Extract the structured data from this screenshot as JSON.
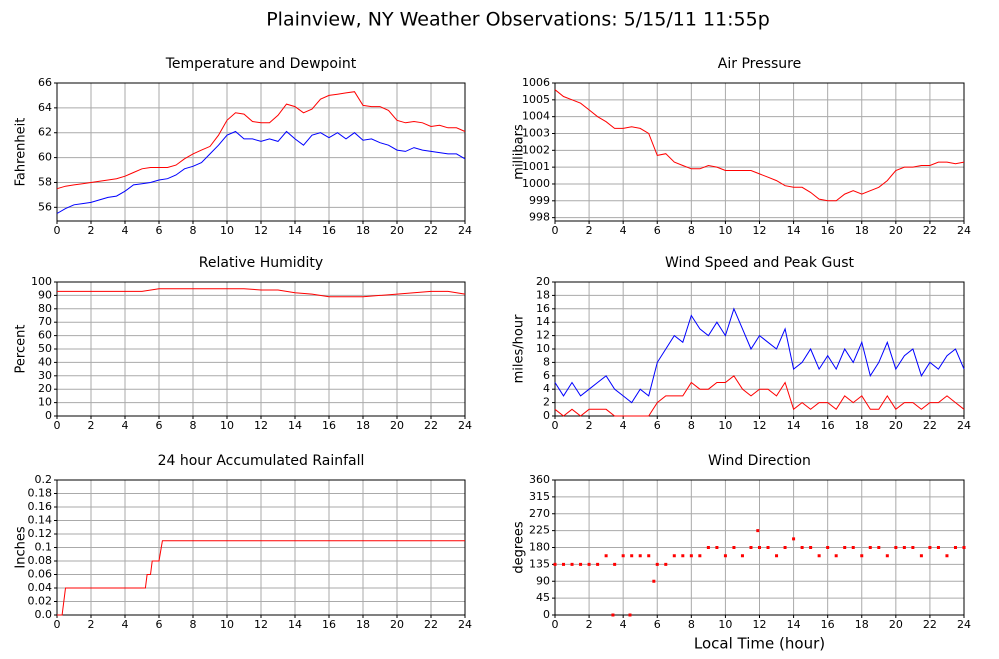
{
  "title": "Plainview, NY Weather Observations: 5/15/11 11:55p",
  "chart_data": [
    {
      "type": "line",
      "title": "Temperature and Dewpoint",
      "ylabel": "Fahrenheit",
      "x": [
        0,
        0.5,
        1,
        1.5,
        2,
        2.5,
        3,
        3.5,
        4,
        4.5,
        5,
        5.5,
        6,
        6.5,
        7,
        7.5,
        8,
        8.5,
        9,
        9.5,
        10,
        10.5,
        11,
        11.5,
        12,
        12.5,
        13,
        13.5,
        14,
        14.5,
        15,
        15.5,
        16,
        16.5,
        17,
        17.5,
        18,
        18.5,
        19,
        19.5,
        20,
        20.5,
        21,
        21.5,
        22,
        22.5,
        23,
        23.5,
        24
      ],
      "series": [
        {
          "color": "#ff0000",
          "values": [
            57.5,
            57.7,
            57.8,
            57.9,
            58.0,
            58.1,
            58.2,
            58.3,
            58.5,
            58.8,
            59.1,
            59.2,
            59.2,
            59.2,
            59.4,
            59.9,
            60.3,
            60.6,
            60.9,
            61.8,
            63.0,
            63.6,
            63.5,
            62.9,
            62.8,
            62.8,
            63.4,
            64.3,
            64.1,
            63.6,
            63.9,
            64.7,
            65.0,
            65.1,
            65.2,
            65.3,
            64.2,
            64.1,
            64.1,
            63.8,
            63.0,
            62.8,
            62.9,
            62.8,
            62.5,
            62.6,
            62.4,
            62.4,
            62.1
          ]
        },
        {
          "color": "#0000ff",
          "values": [
            55.5,
            55.9,
            56.2,
            56.3,
            56.4,
            56.6,
            56.8,
            56.9,
            57.3,
            57.8,
            57.9,
            58.0,
            58.2,
            58.3,
            58.6,
            59.1,
            59.3,
            59.6,
            60.3,
            61.0,
            61.8,
            62.1,
            61.5,
            61.5,
            61.3,
            61.5,
            61.3,
            62.1,
            61.5,
            61.0,
            61.8,
            62.0,
            61.6,
            62.0,
            61.5,
            62.0,
            61.4,
            61.5,
            61.2,
            61.0,
            60.6,
            60.5,
            60.8,
            60.6,
            60.5,
            60.4,
            60.3,
            60.3,
            59.9
          ]
        }
      ],
      "xlim": [
        0,
        24
      ],
      "xticks": [
        0,
        2,
        4,
        6,
        8,
        10,
        12,
        14,
        16,
        18,
        20,
        22,
        24
      ],
      "ylim": [
        54.9,
        66
      ],
      "yticks": [
        56,
        58,
        60,
        62,
        64,
        66
      ],
      "grid": true
    },
    {
      "type": "line",
      "title": "Air Pressure",
      "ylabel": "millibars",
      "x": [
        0,
        0.5,
        1,
        1.5,
        2,
        2.5,
        3,
        3.5,
        4,
        4.5,
        5,
        5.5,
        6,
        6.5,
        7,
        7.5,
        8,
        8.5,
        9,
        9.5,
        10,
        10.5,
        11,
        11.5,
        12,
        12.5,
        13,
        13.5,
        14,
        14.5,
        15,
        15.5,
        16,
        16.5,
        17,
        17.5,
        18,
        18.5,
        19,
        19.5,
        20,
        20.5,
        21,
        21.5,
        22,
        22.5,
        23,
        23.5,
        24
      ],
      "series": [
        {
          "color": "#ff0000",
          "values": [
            1005.6,
            1005.2,
            1005.0,
            1004.8,
            1004.4,
            1004.0,
            1003.7,
            1003.3,
            1003.3,
            1003.4,
            1003.3,
            1003.0,
            1001.7,
            1001.8,
            1001.3,
            1001.1,
            1000.9,
            1000.9,
            1001.1,
            1001.0,
            1000.8,
            1000.8,
            1000.8,
            1000.8,
            1000.6,
            1000.4,
            1000.2,
            999.9,
            999.8,
            999.8,
            999.5,
            999.1,
            999.0,
            999.0,
            999.4,
            999.6,
            999.4,
            999.6,
            999.8,
            1000.2,
            1000.8,
            1001.0,
            1001.0,
            1001.1,
            1001.1,
            1001.3,
            1001.3,
            1001.2,
            1001.3
          ]
        }
      ],
      "xlim": [
        0,
        24
      ],
      "xticks": [
        0,
        2,
        4,
        6,
        8,
        10,
        12,
        14,
        16,
        18,
        20,
        22,
        24
      ],
      "ylim": [
        997.8,
        1006
      ],
      "yticks": [
        998,
        999,
        1000,
        1001,
        1002,
        1003,
        1004,
        1005,
        1006
      ],
      "grid": true
    },
    {
      "type": "line",
      "title": "Relative Humidity",
      "ylabel": "Percent",
      "x": [
        0,
        1,
        2,
        3,
        4,
        5,
        6,
        7,
        8,
        9,
        10,
        11,
        12,
        13,
        14,
        15,
        16,
        17,
        18,
        19,
        20,
        21,
        22,
        23,
        24
      ],
      "series": [
        {
          "color": "#ff0000",
          "values": [
            93,
            93,
            93,
            93,
            93,
            93,
            95,
            95,
            95,
            95,
            95,
            95,
            94,
            94,
            92,
            91,
            89,
            89,
            89,
            90,
            91,
            92,
            93,
            93,
            91
          ]
        }
      ],
      "xlim": [
        0,
        24
      ],
      "xticks": [
        0,
        2,
        4,
        6,
        8,
        10,
        12,
        14,
        16,
        18,
        20,
        22,
        24
      ],
      "ylim": [
        0,
        100
      ],
      "yticks": [
        0,
        10,
        20,
        30,
        40,
        50,
        60,
        70,
        80,
        90,
        100
      ],
      "grid": true
    },
    {
      "type": "line",
      "title": "Wind Speed and Peak Gust",
      "ylabel": "miles/hour",
      "x": [
        0,
        0.5,
        1,
        1.5,
        2,
        2.5,
        3,
        3.5,
        4,
        4.5,
        5,
        5.5,
        6,
        6.5,
        7,
        7.5,
        8,
        8.5,
        9,
        9.5,
        10,
        10.5,
        11,
        11.5,
        12,
        12.5,
        13,
        13.5,
        14,
        14.5,
        15,
        15.5,
        16,
        16.5,
        17,
        17.5,
        18,
        18.5,
        19,
        19.5,
        20,
        20.5,
        21,
        21.5,
        22,
        22.5,
        23,
        23.5,
        24
      ],
      "series": [
        {
          "color": "#0000ff",
          "values": [
            5,
            3,
            5,
            3,
            4,
            5,
            6,
            4,
            3,
            2,
            4,
            3,
            8,
            10,
            12,
            11,
            15,
            13,
            12,
            14,
            12,
            16,
            13,
            10,
            12,
            11,
            10,
            13,
            7,
            8,
            10,
            7,
            9,
            7,
            10,
            8,
            11,
            6,
            8,
            11,
            7,
            9,
            10,
            6,
            8,
            7,
            9,
            10,
            7
          ]
        },
        {
          "color": "#ff0000",
          "values": [
            1,
            0,
            1,
            0,
            1,
            1,
            1,
            0,
            0,
            0,
            0,
            0,
            2,
            3,
            3,
            3,
            5,
            4,
            4,
            5,
            5,
            6,
            4,
            3,
            4,
            4,
            3,
            5,
            1,
            2,
            1,
            2,
            2,
            1,
            3,
            2,
            3,
            1,
            1,
            3,
            1,
            2,
            2,
            1,
            2,
            2,
            3,
            2,
            1
          ]
        }
      ],
      "xlim": [
        0,
        24
      ],
      "xticks": [
        0,
        2,
        4,
        6,
        8,
        10,
        12,
        14,
        16,
        18,
        20,
        22,
        24
      ],
      "ylim": [
        0,
        20
      ],
      "yticks": [
        0,
        2,
        4,
        6,
        8,
        10,
        12,
        14,
        16,
        18,
        20
      ],
      "grid": true
    },
    {
      "type": "line",
      "title": "24 hour Accumulated Rainfall",
      "ylabel": "Inches",
      "x": [
        0,
        0.3,
        0.4,
        0.5,
        5.2,
        5.3,
        5.5,
        5.6,
        6.0,
        6.2,
        24
      ],
      "series": [
        {
          "color": "#ff0000",
          "values": [
            0,
            0,
            0.02,
            0.04,
            0.04,
            0.06,
            0.06,
            0.08,
            0.08,
            0.11,
            0.11
          ]
        }
      ],
      "xlim": [
        0,
        24
      ],
      "xticks": [
        0,
        2,
        4,
        6,
        8,
        10,
        12,
        14,
        16,
        18,
        20,
        22,
        24
      ],
      "ylim": [
        0,
        0.2
      ],
      "yticks": [
        {
          "value": 0,
          "label": "0.0"
        },
        0.02,
        0.04,
        0.06,
        0.08,
        0.1,
        0.12,
        0.14,
        0.16,
        0.18,
        0.2
      ],
      "grid": true
    },
    {
      "type": "scatter",
      "title": "Wind Direction",
      "ylabel": "degrees",
      "xlabel": "Local Time (hour)",
      "x": [
        0,
        0.5,
        1,
        1.5,
        2,
        2.5,
        3,
        3.5,
        4,
        4.5,
        5,
        5.5,
        6,
        6.5,
        7,
        7.5,
        8,
        8.5,
        9,
        9.5,
        10,
        10.5,
        11,
        11.5,
        12,
        12.5,
        13,
        13.5,
        14,
        14.5,
        15,
        15.5,
        16,
        16.5,
        17,
        17.5,
        18,
        18.5,
        19,
        19.5,
        20,
        20.5,
        21,
        21.5,
        22,
        22.5,
        23,
        23.5,
        24,
        3.4,
        4.4,
        5.8,
        11.9
      ],
      "series": [
        {
          "color": "#ff0000",
          "values": [
            135,
            135,
            135,
            135,
            135,
            135,
            158,
            135,
            158,
            158,
            158,
            158,
            135,
            135,
            158,
            158,
            158,
            158,
            180,
            180,
            158,
            180,
            158,
            180,
            180,
            180,
            158,
            180,
            203,
            180,
            180,
            158,
            180,
            158,
            180,
            180,
            158,
            180,
            180,
            158,
            180,
            180,
            180,
            158,
            180,
            180,
            158,
            180,
            180,
            0,
            0,
            90,
            225
          ]
        }
      ],
      "xlim": [
        0,
        24
      ],
      "xticks": [
        0,
        2,
        4,
        6,
        8,
        10,
        12,
        14,
        16,
        18,
        20,
        22,
        24
      ],
      "ylim": [
        0,
        360
      ],
      "yticks": [
        0,
        45,
        90,
        135,
        180,
        225,
        270,
        315,
        360
      ],
      "grid": true
    }
  ]
}
